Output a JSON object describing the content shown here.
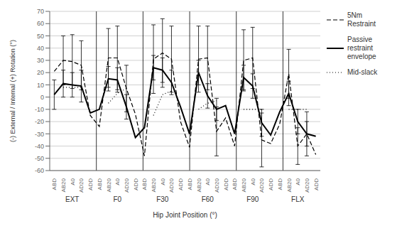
{
  "chart_data": {
    "type": "line",
    "xlabel": "Hip Joint Position (°)",
    "ylabel": "(-) External / Internal (+) Rotation (°)",
    "categories": [
      "ABD",
      "AB20",
      "A0",
      "AD20",
      "ADD",
      "ABD",
      "AB20",
      "A0",
      "AD20",
      "ADD",
      "ABD",
      "AB20",
      "A0",
      "AD20",
      "ADD",
      "ABD",
      "AB20",
      "A0",
      "AD20",
      "ADD",
      "ABD",
      "AB20",
      "A0",
      "AD20",
      "ADD",
      "ABD",
      "AB20",
      "A0",
      "AD20",
      "ADD"
    ],
    "groups": [
      "EXT",
      "F0",
      "F30",
      "F60",
      "F90",
      "FLX"
    ],
    "series": [
      {
        "name": "5Nm\nRestraint",
        "color": "#000000",
        "line_style": "dashed",
        "values": [
          21,
          30,
          29,
          26,
          -15,
          -24,
          32,
          32,
          7,
          -14,
          -48,
          31,
          36,
          31,
          -20,
          -41,
          31,
          32,
          -28,
          -17,
          -40,
          30,
          32,
          -35,
          -38,
          -22,
          19,
          -40,
          -30,
          -47
        ],
        "errors": [
          null,
          20,
          22,
          20,
          null,
          null,
          24,
          26,
          19,
          null,
          null,
          28,
          28,
          27,
          null,
          null,
          27,
          26,
          20,
          null,
          null,
          25,
          25,
          22,
          null,
          null,
          20,
          15,
          18,
          null
        ]
      },
      {
        "name": "Passive\nrestraint\nenvelope",
        "color": "#000000",
        "line_style": "solid",
        "values": [
          2,
          11,
          10,
          9,
          -13,
          -10,
          15,
          14,
          -8,
          -33,
          -25,
          24,
          22,
          12,
          -8,
          -30,
          20,
          1,
          -10,
          -7,
          -30,
          16,
          9,
          -21,
          -31,
          -12,
          3,
          -20,
          -30,
          -32
        ],
        "errors": [
          12,
          11,
          10,
          13,
          null,
          null,
          10,
          10,
          10,
          null,
          null,
          10,
          10,
          10,
          null,
          null,
          10,
          10,
          9,
          null,
          null,
          10,
          10,
          11,
          null,
          null,
          10,
          10,
          10,
          null
        ]
      },
      {
        "name": "Mid-slack",
        "color": "#000000",
        "line_style": "dotted",
        "values": [
          null,
          8,
          8,
          8,
          null,
          null,
          -5,
          3,
          7,
          null,
          null,
          -15,
          2,
          5,
          null,
          null,
          -10,
          -5,
          -3,
          null,
          null,
          -10,
          -10,
          -10,
          null,
          null,
          -10,
          -10,
          -10,
          null
        ]
      }
    ],
    "ylim": [
      -60,
      70
    ],
    "yticks": [
      -60,
      -50,
      -40,
      -30,
      -20,
      -10,
      0,
      10,
      20,
      30,
      40,
      50,
      60,
      70
    ],
    "grid": true,
    "legend": "right"
  }
}
